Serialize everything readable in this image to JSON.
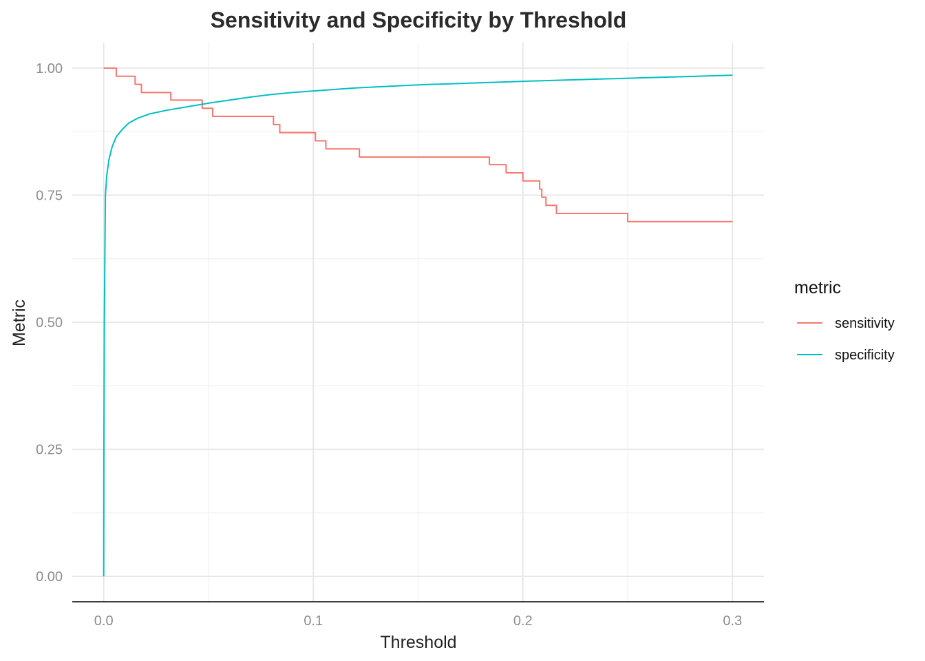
{
  "chart_data": {
    "type": "line",
    "title": "Sensitivity and Specificity by Threshold",
    "xlabel": "Threshold",
    "ylabel": "Metric",
    "xlim": [
      -0.015,
      0.315
    ],
    "ylim": [
      -0.05,
      1.05
    ],
    "x_ticks": [
      0.0,
      0.1,
      0.2,
      0.3
    ],
    "x_tick_labels": [
      "0.0",
      "0.1",
      "0.2",
      "0.3"
    ],
    "y_ticks": [
      0.0,
      0.25,
      0.5,
      0.75,
      1.0
    ],
    "y_tick_labels": [
      "0.00",
      "0.25",
      "0.50",
      "0.75",
      "1.00"
    ],
    "grid": true,
    "legend": {
      "title": "metric",
      "position": "right"
    },
    "series": [
      {
        "name": "sensitivity",
        "color": "#F8766D",
        "step": true,
        "points": [
          [
            0.0,
            1.0
          ],
          [
            0.006,
            0.984
          ],
          [
            0.015,
            0.968
          ],
          [
            0.018,
            0.952
          ],
          [
            0.032,
            0.937
          ],
          [
            0.047,
            0.921
          ],
          [
            0.052,
            0.905
          ],
          [
            0.081,
            0.889
          ],
          [
            0.084,
            0.873
          ],
          [
            0.101,
            0.857
          ],
          [
            0.106,
            0.841
          ],
          [
            0.122,
            0.825
          ],
          [
            0.184,
            0.81
          ],
          [
            0.192,
            0.794
          ],
          [
            0.2,
            0.778
          ],
          [
            0.208,
            0.762
          ],
          [
            0.209,
            0.746
          ],
          [
            0.211,
            0.73
          ],
          [
            0.216,
            0.714
          ],
          [
            0.25,
            0.698
          ],
          [
            0.3,
            0.698
          ]
        ]
      },
      {
        "name": "specificity",
        "color": "#00BFC4",
        "step": false,
        "points": [
          [
            0.0,
            0.0
          ],
          [
            0.0001,
            0.25
          ],
          [
            0.0003,
            0.5
          ],
          [
            0.0008,
            0.75
          ],
          [
            0.0015,
            0.79
          ],
          [
            0.0025,
            0.82
          ],
          [
            0.004,
            0.845
          ],
          [
            0.006,
            0.865
          ],
          [
            0.009,
            0.88
          ],
          [
            0.012,
            0.892
          ],
          [
            0.016,
            0.901
          ],
          [
            0.022,
            0.91
          ],
          [
            0.03,
            0.917
          ],
          [
            0.04,
            0.924
          ],
          [
            0.05,
            0.931
          ],
          [
            0.06,
            0.937
          ],
          [
            0.07,
            0.943
          ],
          [
            0.08,
            0.948
          ],
          [
            0.09,
            0.952
          ],
          [
            0.1,
            0.955
          ],
          [
            0.12,
            0.961
          ],
          [
            0.15,
            0.967
          ],
          [
            0.2,
            0.974
          ],
          [
            0.25,
            0.98
          ],
          [
            0.3,
            0.986
          ]
        ]
      }
    ]
  }
}
